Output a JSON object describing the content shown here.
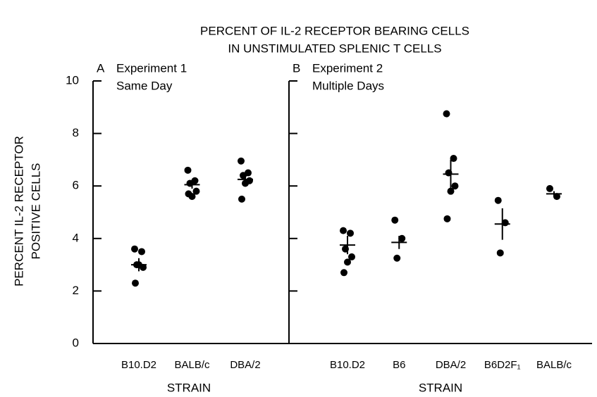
{
  "title": [
    "PERCENT OF IL-2 RECEPTOR BEARING CELLS",
    "IN UNSTIMULATED SPLENIC T CELLS"
  ],
  "ylabel": [
    "PERCENT IL-2 RECEPTOR",
    "POSITIVE CELLS"
  ],
  "chart_data": [
    {
      "type": "strip",
      "panel": "A",
      "label": "Experiment 1",
      "sublabel": "Same Day",
      "xlabel": "STRAIN",
      "categories": [
        "B10.D2",
        "BALB/c",
        "DBA/2"
      ],
      "points": [
        [
          3.6,
          3.5,
          3.0,
          2.9,
          3.0,
          2.3
        ],
        [
          6.6,
          6.2,
          6.1,
          5.8,
          5.6,
          5.7
        ],
        [
          6.95,
          6.5,
          6.4,
          6.2,
          6.1,
          5.5
        ]
      ],
      "means": [
        3.0,
        6.05,
        6.25
      ],
      "errors": [
        0.25,
        0.15,
        0.2
      ],
      "ylim": [
        0,
        10
      ],
      "yticks": [
        0,
        2,
        4,
        6,
        8,
        10
      ],
      "tick_labels": true,
      "color": "#000000"
    },
    {
      "type": "strip",
      "panel": "B",
      "label": "Experiment 2",
      "sublabel": "Multiple Days",
      "xlabel": "STRAIN",
      "categories": [
        "B10.D2",
        "B6",
        "DBA/2",
        "B6D2F₁",
        "BALB/c"
      ],
      "points": [
        [
          4.3,
          4.2,
          3.6,
          3.3,
          3.1,
          2.7
        ],
        [
          4.7,
          4.0,
          3.25
        ],
        [
          8.75,
          7.05,
          6.5,
          6.0,
          5.8,
          4.75
        ],
        [
          5.45,
          4.6,
          3.45
        ],
        [
          5.9,
          5.6
        ]
      ],
      "means": [
        3.75,
        3.85,
        6.45,
        4.55,
        5.7
      ],
      "errors": [
        0.35,
        0.25,
        0.55,
        0.6,
        0.1
      ],
      "ylim": [
        0,
        10
      ],
      "yticks": [
        0,
        2,
        4,
        6,
        8,
        10
      ],
      "tick_labels": false,
      "color": "#000000"
    }
  ]
}
